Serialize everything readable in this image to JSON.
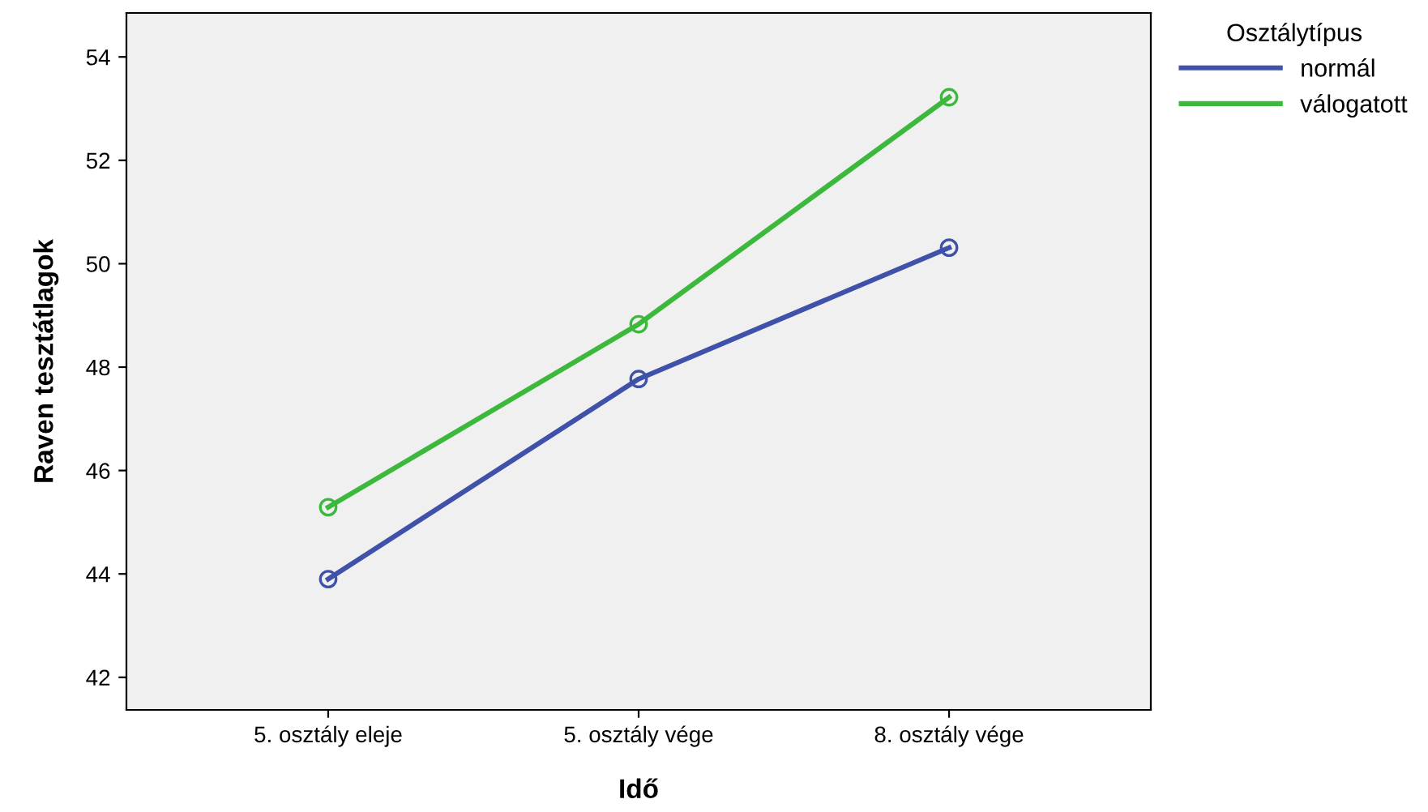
{
  "chart_data": {
    "type": "line",
    "xlabel": "Idő",
    "ylabel": "Raven tesztátlagok",
    "legend_title": "Osztálytípus",
    "categories": [
      "5. osztály eleje",
      "5. osztály vége",
      "8. osztály vége"
    ],
    "series": [
      {
        "name": "normál",
        "color": "#3f51a8",
        "values": [
          43.9,
          47.77,
          50.31
        ]
      },
      {
        "name": "válogatott",
        "color": "#3cb93c",
        "values": [
          45.29,
          48.83,
          53.22
        ]
      }
    ],
    "ylim": [
      41.37,
      54.85
    ],
    "yticks": [
      42,
      44,
      46,
      48,
      50,
      52,
      54
    ],
    "grid": false,
    "legend": "top right",
    "marker": "circle",
    "line_style": "solid"
  }
}
